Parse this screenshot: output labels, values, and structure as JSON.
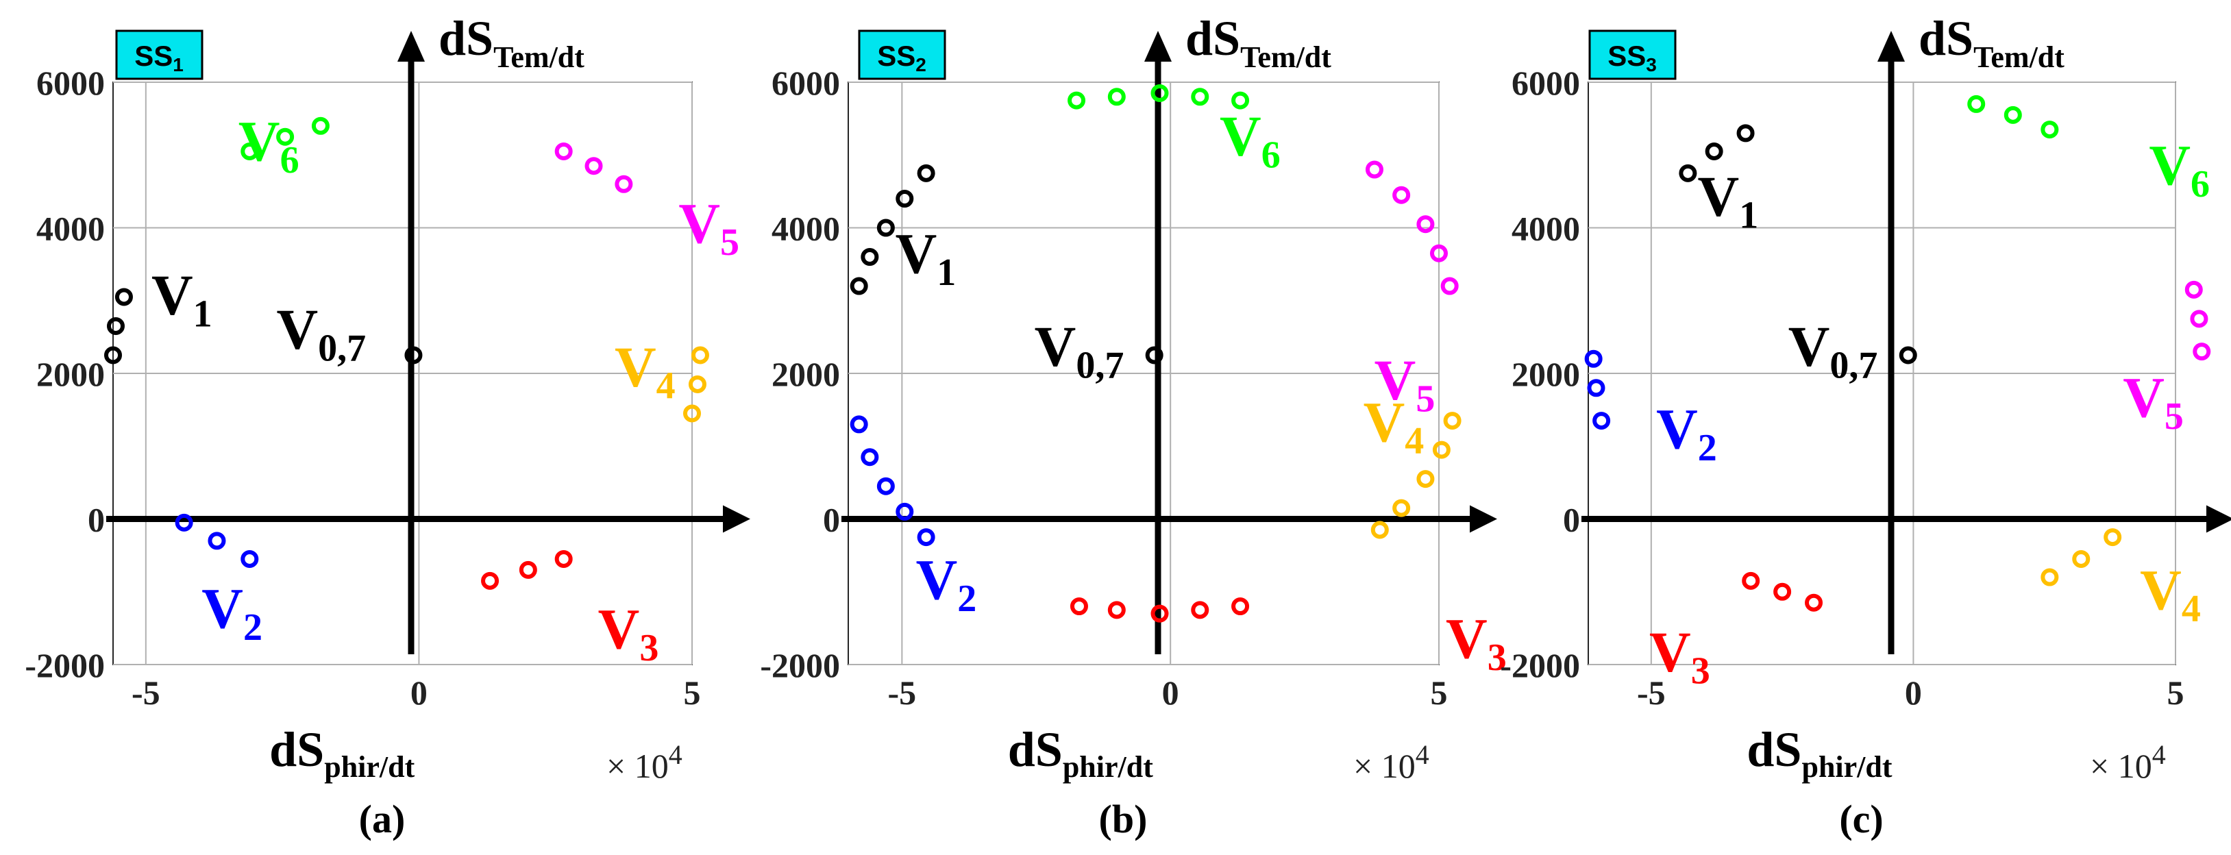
{
  "chart_data": [
    {
      "type": "scatter",
      "panel_label": "SS",
      "panel_label_sub": "1",
      "caption": "(a)",
      "xlabel": "dS",
      "xlabel_sub": "phir/dt",
      "ylabel": "dS",
      "ylabel_sub": "Tem/dt",
      "x_multiplier": "× 10",
      "x_multiplier_exp": "4",
      "xlim": [
        -5.6,
        5.0
      ],
      "ylim": [
        -2000,
        6000
      ],
      "xticks": [
        -5,
        0,
        5
      ],
      "xtick_labels": [
        "-5",
        "0",
        "5"
      ],
      "yticks": [
        -2000,
        0,
        2000,
        4000,
        6000
      ],
      "ytick_labels": [
        "-2000",
        "0",
        "2000",
        "4000",
        "6000"
      ],
      "grid": true,
      "series": [
        {
          "name": "V",
          "sub": "0,7",
          "color": "#000000",
          "points": [
            [
              -0.1,
              2250
            ]
          ]
        },
        {
          "name": "V",
          "sub": "1",
          "color": "#000000",
          "points": [
            [
              -5.6,
              2250
            ],
            [
              -5.55,
              2650
            ],
            [
              -5.4,
              3050
            ]
          ]
        },
        {
          "name": "V",
          "sub": "2",
          "color": "#0000ff",
          "points": [
            [
              -4.3,
              -50
            ],
            [
              -3.7,
              -300
            ],
            [
              -3.1,
              -550
            ]
          ]
        },
        {
          "name": "V",
          "sub": "3",
          "color": "#ff0000",
          "points": [
            [
              1.3,
              -850
            ],
            [
              2.0,
              -700
            ],
            [
              2.65,
              -550
            ]
          ]
        },
        {
          "name": "V",
          "sub": "4",
          "color": "#ffbf00",
          "points": [
            [
              5.0,
              1450
            ],
            [
              5.1,
              1850
            ],
            [
              5.15,
              2250
            ]
          ]
        },
        {
          "name": "V",
          "sub": "5",
          "color": "#ff00ff",
          "points": [
            [
              2.65,
              5050
            ],
            [
              3.2,
              4850
            ],
            [
              3.75,
              4600
            ]
          ]
        },
        {
          "name": "V",
          "sub": "6",
          "color": "#00ff00",
          "points": [
            [
              -3.1,
              5050
            ],
            [
              -2.45,
              5250
            ],
            [
              -1.8,
              5400
            ]
          ]
        }
      ]
    },
    {
      "type": "scatter",
      "panel_label": "SS",
      "panel_label_sub": "2",
      "caption": "(b)",
      "xlabel": "dS",
      "xlabel_sub": "phir/dt",
      "ylabel": "dS",
      "ylabel_sub": "Tem/dt",
      "x_multiplier": "× 10",
      "x_multiplier_exp": "4",
      "xlim": [
        -6.0,
        5.0
      ],
      "ylim": [
        -2000,
        6000
      ],
      "xticks": [
        -5,
        0,
        5
      ],
      "xtick_labels": [
        "-5",
        "0",
        "5"
      ],
      "yticks": [
        -2000,
        0,
        2000,
        4000,
        6000
      ],
      "ytick_labels": [
        "-2000",
        "0",
        "2000",
        "4000",
        "6000"
      ],
      "grid": true,
      "series": [
        {
          "name": "V",
          "sub": "0,7",
          "color": "#000000",
          "points": [
            [
              -0.3,
              2250
            ]
          ]
        },
        {
          "name": "V",
          "sub": "1",
          "color": "#000000",
          "points": [
            [
              -5.8,
              3200
            ],
            [
              -5.6,
              3600
            ],
            [
              -5.3,
              4000
            ],
            [
              -4.95,
              4400
            ],
            [
              -4.55,
              4750
            ]
          ]
        },
        {
          "name": "V",
          "sub": "2",
          "color": "#0000ff",
          "points": [
            [
              -5.8,
              1300
            ],
            [
              -5.6,
              850
            ],
            [
              -5.3,
              450
            ],
            [
              -4.95,
              100
            ],
            [
              -4.55,
              -250
            ]
          ]
        },
        {
          "name": "V",
          "sub": "3",
          "color": "#ff0000",
          "points": [
            [
              -1.7,
              -1200
            ],
            [
              -1.0,
              -1250
            ],
            [
              -0.2,
              -1300
            ],
            [
              0.55,
              -1250
            ],
            [
              1.3,
              -1200
            ]
          ]
        },
        {
          "name": "V",
          "sub": "4",
          "color": "#ffbf00",
          "points": [
            [
              3.9,
              -150
            ],
            [
              4.3,
              150
            ],
            [
              4.75,
              550
            ],
            [
              5.05,
              950
            ],
            [
              5.25,
              1350
            ]
          ]
        },
        {
          "name": "V",
          "sub": "5",
          "color": "#ff00ff",
          "points": [
            [
              3.8,
              4800
            ],
            [
              4.3,
              4450
            ],
            [
              4.75,
              4050
            ],
            [
              5.0,
              3650
            ],
            [
              5.2,
              3200
            ]
          ]
        },
        {
          "name": "V",
          "sub": "6",
          "color": "#00ff00",
          "points": [
            [
              -1.75,
              5750
            ],
            [
              -1.0,
              5800
            ],
            [
              -0.2,
              5850
            ],
            [
              0.55,
              5800
            ],
            [
              1.3,
              5750
            ]
          ]
        }
      ]
    },
    {
      "type": "scatter",
      "panel_label": "SS",
      "panel_label_sub": "3",
      "caption": "(c)",
      "xlabel": "dS",
      "xlabel_sub": "phir/dt",
      "ylabel": "dS",
      "ylabel_sub": "Tem/dt",
      "x_multiplier": "× 10",
      "x_multiplier_exp": "4",
      "xlim": [
        -6.2,
        5.0
      ],
      "ylim": [
        -2000,
        6000
      ],
      "xticks": [
        -5,
        0,
        5
      ],
      "xtick_labels": [
        "-5",
        "0",
        "5"
      ],
      "yticks": [
        -2000,
        0,
        2000,
        4000,
        6000
      ],
      "ytick_labels": [
        "-2000",
        "0",
        "2000",
        "4000",
        "6000"
      ],
      "grid": true,
      "series": [
        {
          "name": "V",
          "sub": "0,7",
          "color": "#000000",
          "points": [
            [
              -0.1,
              2250
            ]
          ]
        },
        {
          "name": "V",
          "sub": "1",
          "color": "#000000",
          "points": [
            [
              -4.3,
              4750
            ],
            [
              -3.8,
              5050
            ],
            [
              -3.2,
              5300
            ]
          ]
        },
        {
          "name": "V",
          "sub": "2",
          "color": "#0000ff",
          "points": [
            [
              -6.1,
              2200
            ],
            [
              -6.05,
              1800
            ],
            [
              -5.95,
              1350
            ]
          ]
        },
        {
          "name": "V",
          "sub": "3",
          "color": "#ff0000",
          "points": [
            [
              -3.1,
              -850
            ],
            [
              -2.5,
              -1000
            ],
            [
              -1.9,
              -1150
            ]
          ]
        },
        {
          "name": "V",
          "sub": "4",
          "color": "#ffbf00",
          "points": [
            [
              2.6,
              -800
            ],
            [
              3.2,
              -550
            ],
            [
              3.8,
              -250
            ]
          ]
        },
        {
          "name": "V",
          "sub": "5",
          "color": "#ff00ff",
          "points": [
            [
              5.35,
              3150
            ],
            [
              5.45,
              2750
            ],
            [
              5.5,
              2300
            ]
          ]
        },
        {
          "name": "V",
          "sub": "6",
          "color": "#00ff00",
          "points": [
            [
              1.2,
              5700
            ],
            [
              1.9,
              5550
            ],
            [
              2.6,
              5350
            ]
          ]
        }
      ]
    }
  ]
}
